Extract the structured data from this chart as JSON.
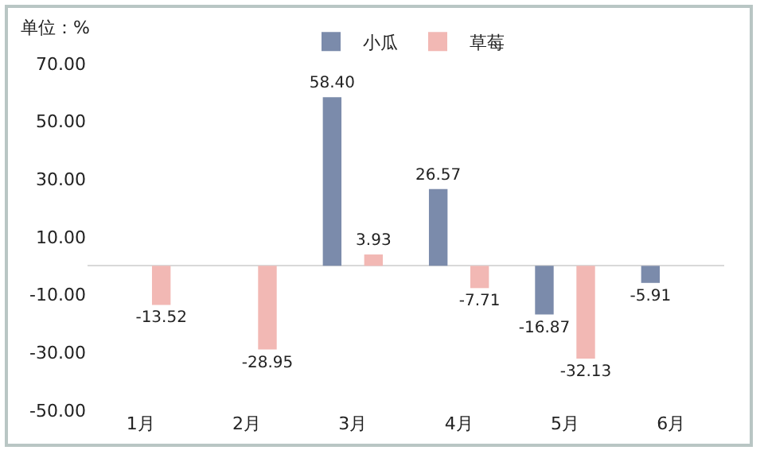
{
  "chart_data": {
    "type": "bar",
    "ylabel": "单位：%",
    "categories": [
      "1月",
      "2月",
      "3月",
      "4月",
      "5月",
      "6月"
    ],
    "series": [
      {
        "name": "小瓜",
        "color": "#7b8bab",
        "values": [
          null,
          null,
          58.4,
          26.57,
          -16.87,
          -5.91
        ],
        "value_labels": [
          null,
          null,
          "58.40",
          "26.57",
          "-16.87",
          "-5.91"
        ]
      },
      {
        "name": "草莓",
        "color": "#f2b8b4",
        "values": [
          -13.52,
          -28.95,
          3.93,
          -7.71,
          -32.13,
          null
        ],
        "value_labels": [
          "-13.52",
          "-28.95",
          "3.93",
          "-7.71",
          "-32.13",
          null
        ]
      }
    ],
    "ylim": [
      -50,
      70
    ],
    "yticks": [
      {
        "value": 70,
        "label": "70.00"
      },
      {
        "value": 50,
        "label": "50.00"
      },
      {
        "value": 30,
        "label": "30.00"
      },
      {
        "value": 10,
        "label": "10.00"
      },
      {
        "value": -10,
        "label": "-10.00"
      },
      {
        "value": -30,
        "label": "-30.00"
      },
      {
        "value": -50,
        "label": "-50.00"
      }
    ],
    "grid": false,
    "legend": "top"
  }
}
